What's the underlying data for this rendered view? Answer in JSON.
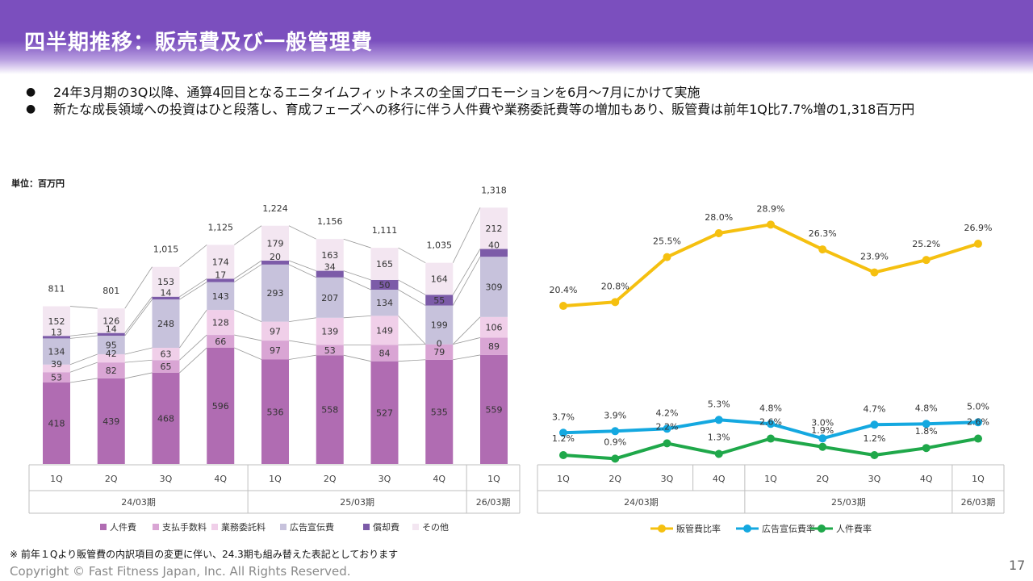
{
  "header": {
    "title": "四半期推移：販売費及び一般管理費"
  },
  "bullets": [
    "24年3月期の3Q以降、通算4回目となるエニタイムフィットネスの全国プロモーションを6月～7月にかけて実施",
    "新たな成長領域への投資はひと段落し、育成フェーズへの移行に伴う人件費や業務委託費等の増加もあり、販管費は前年1Q比7.7%増の1,318百万円"
  ],
  "unit_label": "単位：百万円",
  "chart_data": [
    {
      "type": "bar",
      "stacked": true,
      "categories": [
        "1Q",
        "2Q",
        "3Q",
        "4Q",
        "1Q",
        "2Q",
        "3Q",
        "4Q",
        "1Q"
      ],
      "periods": [
        {
          "label": "24/03期",
          "span": 4
        },
        {
          "label": "25/03期",
          "span": 4
        },
        {
          "label": "26/03期",
          "span": 1
        }
      ],
      "series": [
        {
          "name": "人件費",
          "color": "#b06cb2",
          "values": [
            418,
            439,
            468,
            596,
            536,
            558,
            527,
            535,
            559
          ]
        },
        {
          "name": "支払手数料",
          "color": "#d9a5d4",
          "values": [
            53,
            82,
            65,
            66,
            97,
            53,
            84,
            79,
            89
          ]
        },
        {
          "name": "業務委託料",
          "color": "#f0cfe9",
          "values": [
            39,
            42,
            63,
            128,
            97,
            139,
            149,
            0,
            106
          ]
        },
        {
          "name": "広告宣伝費",
          "color": "#c7c2dc",
          "values": [
            134,
            95,
            248,
            143,
            293,
            207,
            134,
            199,
            309
          ]
        },
        {
          "name": "償却費",
          "color": "#7c5ba8",
          "values": [
            13,
            14,
            14,
            17,
            20,
            34,
            50,
            55,
            40
          ]
        },
        {
          "name": "その他",
          "color": "#f3e6f1",
          "values": [
            152,
            126,
            153,
            174,
            179,
            163,
            165,
            164,
            212
          ]
        }
      ],
      "totals": [
        "811",
        "801",
        "1,015",
        "1,125",
        "1,224",
        "1,156",
        "1,111",
        "1,035",
        "1,318"
      ],
      "legend_position": "bottom"
    },
    {
      "type": "line",
      "categories": [
        "1Q",
        "2Q",
        "3Q",
        "4Q",
        "1Q",
        "2Q",
        "3Q",
        "4Q",
        "1Q"
      ],
      "periods": [
        {
          "label": "24/03期",
          "span": 4
        },
        {
          "label": "25/03期",
          "span": 4
        },
        {
          "label": "26/03期",
          "span": 1
        }
      ],
      "series": [
        {
          "name": "販管費比率",
          "color": "#f5c010",
          "values": [
            20.4,
            20.8,
            25.5,
            28.0,
            28.9,
            26.3,
            23.9,
            25.2,
            26.9
          ],
          "labels": [
            "20.4%",
            "20.8%",
            "25.5%",
            "28.0%",
            "28.9%",
            "26.3%",
            "23.9%",
            "25.2%",
            "26.9%"
          ]
        },
        {
          "name": "人件費率",
          "color": "#1fa84a",
          "values": [
            1.2,
            0.9,
            2.2,
            1.3,
            2.6,
            1.9,
            1.2,
            1.8,
            2.6
          ],
          "labels": [
            "1.2%",
            "0.9%",
            "2.2%",
            "1.3%",
            "2.6%",
            "1.9%",
            "1.2%",
            "1.8%",
            "2.6%"
          ]
        },
        {
          "name": "広告宣伝費率",
          "color": "#14a8e0",
          "values": [
            3.7,
            3.9,
            4.2,
            5.3,
            4.8,
            3.0,
            4.7,
            4.8,
            5.0
          ],
          "labels": [
            "3.7%",
            "3.9%",
            "4.2%",
            "5.3%",
            "4.8%",
            "3.0%",
            "4.7%",
            "4.8%",
            "5.0%"
          ]
        }
      ],
      "legend_position": "bottom"
    }
  ],
  "footer": {
    "note": "※ 前年１Qより販管費の内訳項目の変更に伴い、24.3期も組み替えた表記としております",
    "copyright": "Copyright © Fast Fitness Japan, Inc. All Rights Reserved.",
    "page": "17"
  }
}
